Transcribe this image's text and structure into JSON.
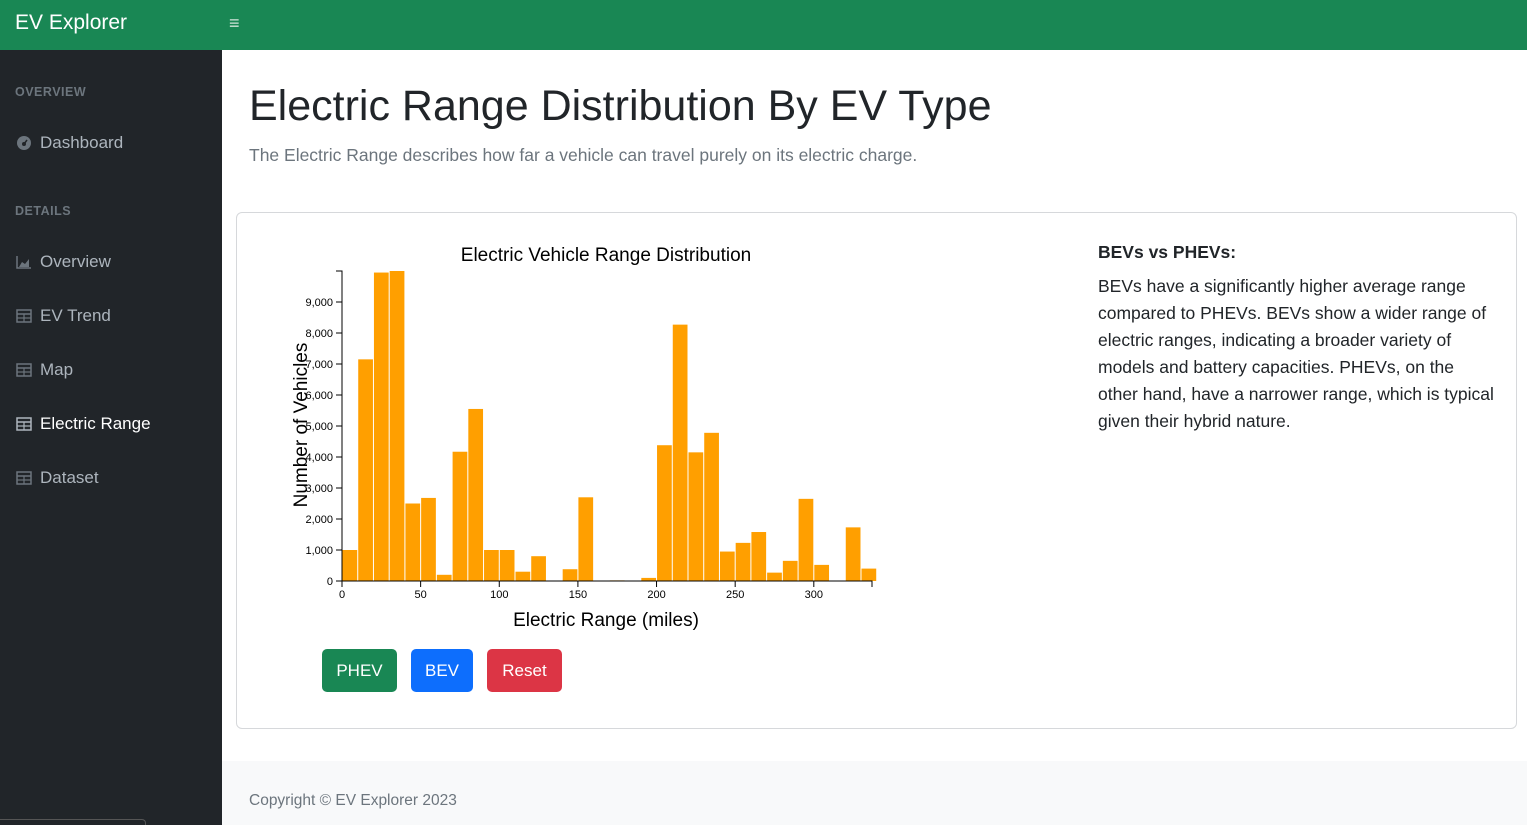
{
  "app": {
    "brand": "EV Explorer",
    "menu_icon": "hamburger-icon"
  },
  "sidebar": {
    "sections": [
      {
        "heading": "OVERVIEW"
      },
      {
        "heading": "DETAILS"
      }
    ],
    "items": [
      {
        "label": "Dashboard",
        "icon": "gauge-icon",
        "active": false
      },
      {
        "label": "Overview",
        "icon": "area-chart-icon",
        "active": false
      },
      {
        "label": "EV Trend",
        "icon": "table-icon",
        "active": false
      },
      {
        "label": "Map",
        "icon": "table-icon",
        "active": false
      },
      {
        "label": "Electric Range",
        "icon": "table-icon",
        "active": true
      },
      {
        "label": "Dataset",
        "icon": "table-icon",
        "active": false
      }
    ]
  },
  "page": {
    "title": "Electric Range Distribution By EV Type",
    "subtitle": "The Electric Range describes how far a vehicle can travel purely on its electric charge."
  },
  "chart_data": {
    "type": "bar",
    "title": "Electric Vehicle Range Distribution",
    "xlabel": "Electric Range (miles)",
    "ylabel": "Number of Vehicles",
    "xlim": [
      0,
      337
    ],
    "ylim": [
      0,
      10000
    ],
    "x_ticks": [
      0,
      50,
      100,
      150,
      200,
      250,
      300
    ],
    "y_ticks": [
      0,
      1000,
      2000,
      3000,
      4000,
      5000,
      6000,
      7000,
      8000,
      9000
    ],
    "y_tick_labels": [
      "0",
      "1,000",
      "2,000",
      "3,000",
      "4,000",
      "5,000",
      "6,000",
      "7,000",
      "8,000",
      "9,000"
    ],
    "bin_width": 10,
    "bins": [
      {
        "x0": 0,
        "value": 1000
      },
      {
        "x0": 10,
        "value": 7150
      },
      {
        "x0": 20,
        "value": 9950
      },
      {
        "x0": 30,
        "value": 10000
      },
      {
        "x0": 40,
        "value": 2500
      },
      {
        "x0": 50,
        "value": 2680
      },
      {
        "x0": 60,
        "value": 200
      },
      {
        "x0": 70,
        "value": 4170
      },
      {
        "x0": 80,
        "value": 5550
      },
      {
        "x0": 90,
        "value": 1000
      },
      {
        "x0": 100,
        "value": 1000
      },
      {
        "x0": 110,
        "value": 300
      },
      {
        "x0": 120,
        "value": 800
      },
      {
        "x0": 140,
        "value": 380
      },
      {
        "x0": 150,
        "value": 2700
      },
      {
        "x0": 170,
        "value": 20
      },
      {
        "x0": 190,
        "value": 100
      },
      {
        "x0": 200,
        "value": 4380
      },
      {
        "x0": 210,
        "value": 8270
      },
      {
        "x0": 220,
        "value": 4150
      },
      {
        "x0": 230,
        "value": 4780
      },
      {
        "x0": 240,
        "value": 950
      },
      {
        "x0": 250,
        "value": 1230
      },
      {
        "x0": 260,
        "value": 1580
      },
      {
        "x0": 270,
        "value": 270
      },
      {
        "x0": 280,
        "value": 650
      },
      {
        "x0": 290,
        "value": 2650
      },
      {
        "x0": 300,
        "value": 520
      },
      {
        "x0": 320,
        "value": 1730
      },
      {
        "x0": 330,
        "value": 400
      }
    ],
    "bar_color": "#ff9f00",
    "grid": false
  },
  "controls": {
    "phev": "PHEV",
    "bev": "BEV",
    "reset": "Reset"
  },
  "info": {
    "heading": "BEVs vs PHEVs:",
    "text": "BEVs have a significantly higher average range compared to PHEVs. BEVs show a wider range of electric ranges, indicating a broader variety of models and battery capacities. PHEVs, on the other hand, have a narrower range, which is typical given their hybrid nature."
  },
  "footer": {
    "text": "Copyright © EV Explorer 2023"
  },
  "colors": {
    "header": "#198754",
    "sidebar": "#212529",
    "phev_button": "#198754",
    "bev_button": "#0d6efd",
    "reset_button": "#dc3545"
  }
}
